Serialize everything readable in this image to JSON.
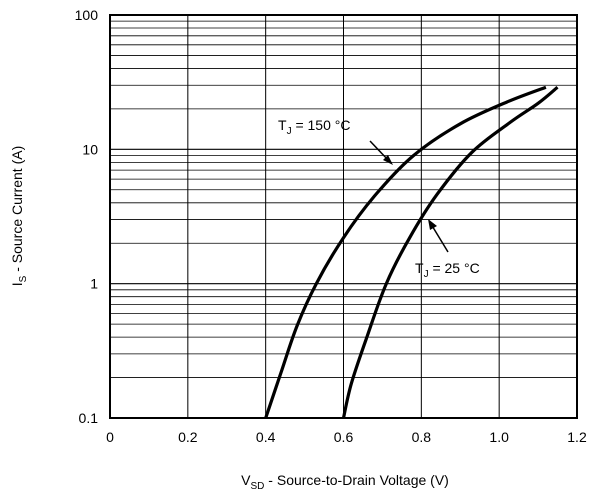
{
  "chart_data": {
    "type": "line",
    "xlabel": {
      "main": "V",
      "sub": "SD",
      "rest": " - Source-to-Drain Voltage (V)"
    },
    "ylabel": {
      "main": "I",
      "sub": "S",
      "rest": " - Source Current (A)"
    },
    "xlim": [
      0,
      1.2
    ],
    "ylim": [
      0.1,
      100
    ],
    "yscale": "log",
    "grid": true,
    "x_ticks": [
      0,
      0.2,
      0.4,
      0.6,
      0.8,
      1.0,
      1.2
    ],
    "x_tick_labels": [
      "0",
      "0.2",
      "0.4",
      "0.6",
      "0.8",
      "1.0",
      "1.2"
    ],
    "y_ticks": [
      0.1,
      1,
      10,
      100
    ],
    "y_tick_labels": [
      "0.1",
      "1",
      "10",
      "100"
    ],
    "series": [
      {
        "name": "150 °C",
        "points": [
          [
            0.4,
            0.1
          ],
          [
            0.44,
            0.22
          ],
          [
            0.48,
            0.48
          ],
          [
            0.53,
            1.0
          ],
          [
            0.6,
            2.2
          ],
          [
            0.68,
            4.5
          ],
          [
            0.78,
            9.0
          ],
          [
            0.9,
            15.5
          ],
          [
            1.02,
            22.5
          ],
          [
            1.12,
            29.0
          ]
        ]
      },
      {
        "name": "25 °C",
        "points": [
          [
            0.6,
            0.1
          ],
          [
            0.62,
            0.18
          ],
          [
            0.66,
            0.4
          ],
          [
            0.71,
            1.0
          ],
          [
            0.77,
            2.2
          ],
          [
            0.84,
            4.6
          ],
          [
            0.93,
            9.5
          ],
          [
            1.03,
            16.0
          ],
          [
            1.1,
            22.0
          ],
          [
            1.15,
            29.0
          ]
        ]
      }
    ],
    "annotations": [
      {
        "main": "T",
        "sub": "J",
        "rest": " = 150 °C"
      },
      {
        "main": "T",
        "sub": "J",
        "rest": " = 25 °C"
      }
    ]
  }
}
